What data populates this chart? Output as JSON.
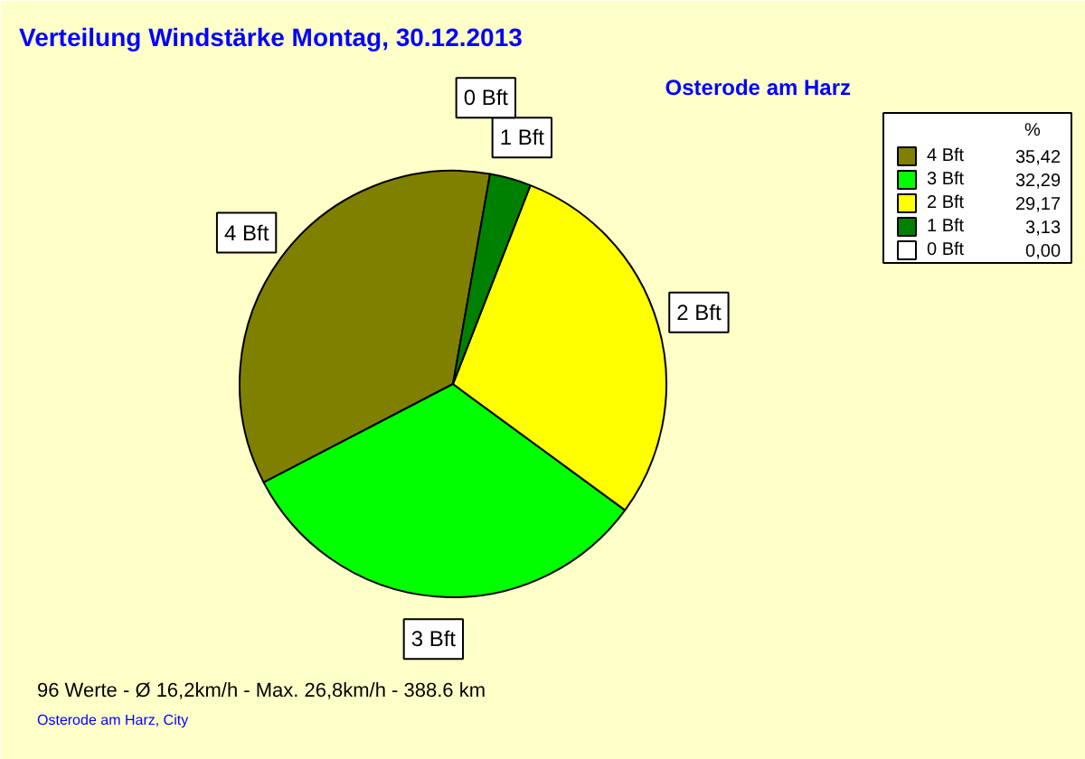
{
  "chart_data": {
    "type": "pie",
    "title": "Verteilung Windstärke  Montag, 30.12.2013",
    "subtitle": "Osterode am Harz",
    "legend_title": "%",
    "categories": [
      "4 Bft",
      "3 Bft",
      "2 Bft",
      "1 Bft",
      "0 Bft"
    ],
    "values": [
      35.42,
      32.29,
      29.17,
      3.13,
      0.0
    ],
    "value_labels": [
      "35,42",
      "32,29",
      "29,17",
      "3,13",
      "0,00"
    ],
    "colors": [
      "#808000",
      "#00ff00",
      "#ffff00",
      "#008000",
      "#ffffff"
    ],
    "legend": "top right",
    "annotations": [
      "96 Werte   -   Ø 16,2km/h  -  Max. 26,8km/h   -   388.6 km",
      "Osterode am Harz, City"
    ]
  }
}
